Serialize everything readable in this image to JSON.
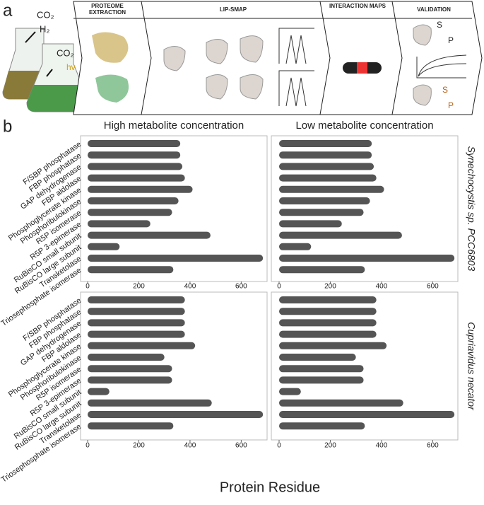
{
  "panel_a": {
    "label": "a",
    "gases": [
      "CO₂",
      "H₂",
      "CO₂"
    ],
    "light": "hv",
    "steps": [
      "PROTEOME EXTRACTION",
      "LIP-SMAP",
      "INTERACTION MAPS",
      "VALIDATION"
    ],
    "validation": [
      "S",
      "P",
      "S",
      "P"
    ]
  },
  "panel_b": {
    "label": "b",
    "xlabel": "Protein Residue"
  },
  "chart_data": [
    {
      "type": "bar",
      "orientation": "horizontal",
      "title": "High metabolite concentration",
      "color": "#555555",
      "categories": [
        "F/SBP phosphatase",
        "FBP phosphatase",
        "GAP dehydrogenase",
        "FBP aldolase",
        "Phosphoglycerate kinase",
        "Phosphoribulokinase",
        "R5P isomerase",
        "R5P 3-epimerase",
        "RuBisCO small subunit",
        "RuBisCO large subunit",
        "Transketolase",
        "Triosephosphate isomerase"
      ],
      "values": [
        362,
        362,
        370,
        380,
        410,
        355,
        330,
        245,
        480,
        125,
        685,
        335
      ],
      "xlim": [
        0,
        690
      ],
      "xticks": [
        0,
        200,
        400,
        600
      ]
    },
    {
      "type": "bar",
      "orientation": "horizontal",
      "title": "Low metabolite concentration",
      "organism": "Synechocystis sp. PCC6803",
      "color": "#555555",
      "values": [
        362,
        362,
        370,
        380,
        410,
        355,
        330,
        245,
        480,
        125,
        685,
        335
      ],
      "xlim": [
        0,
        690
      ],
      "xticks": [
        0,
        200,
        400,
        600
      ]
    },
    {
      "type": "bar",
      "orientation": "horizontal",
      "color": "#555555",
      "categories": [
        "F/SBP phosphatase",
        "FBP phosphatase",
        "GAP dehydrogenase",
        "FBP aldolase",
        "Phosphoglycerate kinase",
        "Phosphoribulokinase",
        "R5P isomerase",
        "R5P 3-epimerase",
        "RuBisCO small subunit",
        "RuBisCO large subunit",
        "Transketolase",
        "Triosephosphate isomerase"
      ],
      "values": [
        380,
        380,
        380,
        380,
        420,
        300,
        330,
        330,
        85,
        485,
        685,
        335
      ],
      "xlim": [
        0,
        690
      ],
      "xticks": [
        0,
        200,
        400,
        600
      ]
    },
    {
      "type": "bar",
      "orientation": "horizontal",
      "organism": "Cupriavidus necator",
      "color": "#555555",
      "values": [
        380,
        380,
        380,
        380,
        420,
        300,
        330,
        330,
        85,
        485,
        685,
        335
      ],
      "xlim": [
        0,
        690
      ],
      "xticks": [
        0,
        200,
        400,
        600
      ]
    }
  ]
}
